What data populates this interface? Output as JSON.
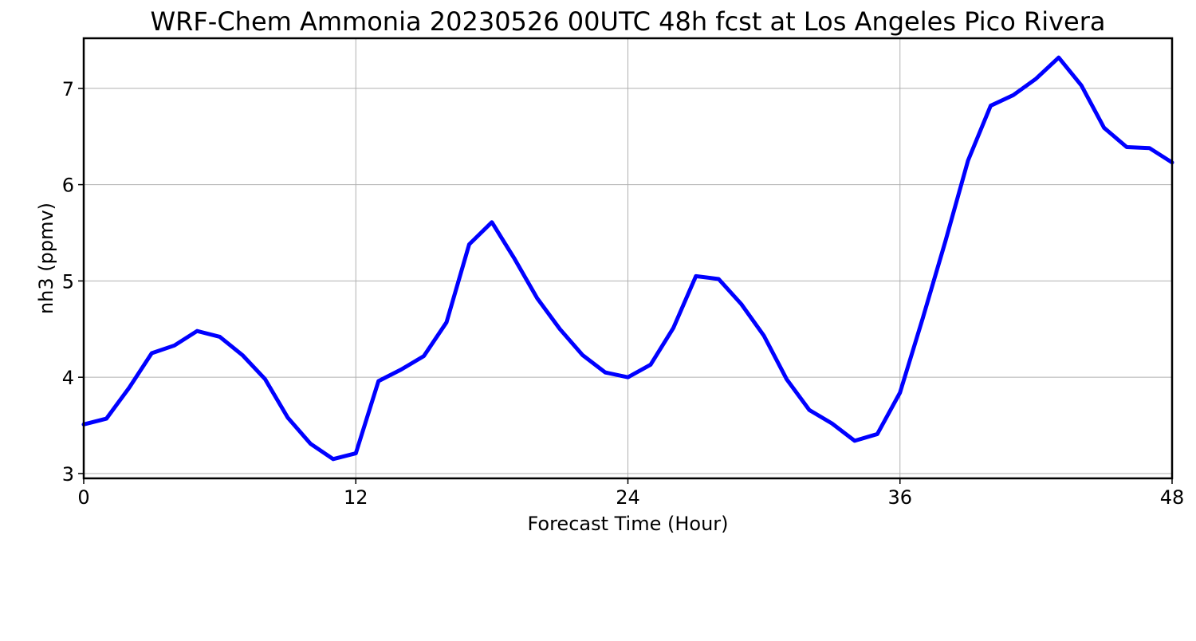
{
  "chart_data": {
    "type": "line",
    "title": "WRF-Chem Ammonia  20230526 00UTC 48h fcst at Los Angeles Pico Rivera",
    "xlabel": "Forecast Time (Hour)",
    "ylabel": "nh3  (ppmv)",
    "xlim": [
      0,
      48
    ],
    "ylim": [
      2.95,
      7.52
    ],
    "xticks": [
      0,
      12,
      24,
      36,
      48
    ],
    "yticks": [
      3,
      4,
      5,
      6,
      7
    ],
    "grid": true,
    "x": [
      0,
      1,
      2,
      3,
      4,
      5,
      6,
      7,
      8,
      9,
      10,
      11,
      12,
      13,
      14,
      15,
      16,
      17,
      18,
      19,
      20,
      21,
      22,
      23,
      24,
      25,
      26,
      27,
      28,
      29,
      30,
      31,
      32,
      33,
      34,
      35,
      36,
      37,
      38,
      39,
      40,
      41,
      42,
      43,
      44,
      45,
      46,
      47,
      48
    ],
    "series": [
      {
        "color": "#0000ff",
        "values": [
          3.51,
          3.57,
          3.89,
          4.25,
          4.33,
          4.48,
          4.42,
          4.23,
          3.98,
          3.58,
          3.31,
          3.15,
          3.21,
          3.96,
          4.08,
          4.22,
          4.57,
          5.38,
          5.61,
          5.23,
          4.82,
          4.5,
          4.23,
          4.05,
          4.0,
          4.13,
          4.51,
          5.05,
          5.02,
          4.76,
          4.43,
          3.98,
          3.66,
          3.52,
          3.34,
          3.41,
          3.84,
          4.61,
          5.41,
          6.25,
          6.82,
          6.93,
          7.1,
          7.32,
          7.03,
          6.59,
          6.39,
          6.38,
          6.23
        ]
      }
    ]
  }
}
